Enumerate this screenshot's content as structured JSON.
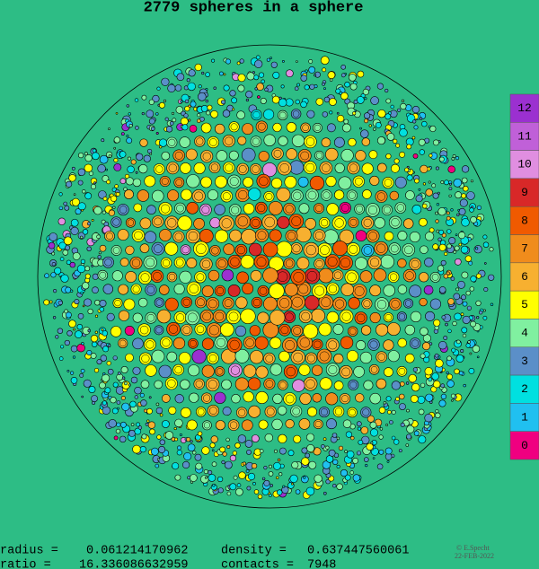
{
  "title": "2779 spheres in a sphere",
  "legend": [
    {
      "label": 12,
      "color": "#9b30d0"
    },
    {
      "label": 11,
      "color": "#c060d8"
    },
    {
      "label": 10,
      "color": "#e08ee0"
    },
    {
      "label": 9,
      "color": "#d82828"
    },
    {
      "label": 8,
      "color": "#f05a00"
    },
    {
      "label": 7,
      "color": "#f08c1c"
    },
    {
      "label": 6,
      "color": "#f7b030"
    },
    {
      "label": 5,
      "color": "#ffff00"
    },
    {
      "label": 4,
      "color": "#80f0a0"
    },
    {
      "label": 3,
      "color": "#5b8fc8"
    },
    {
      "label": 2,
      "color": "#00e0e0"
    },
    {
      "label": 1,
      "color": "#20c0f0"
    },
    {
      "label": 0,
      "color": "#f00080"
    }
  ],
  "stats": {
    "radius_label": "radius =",
    "radius": "0.061214170962",
    "density_label": "density =",
    "density": "0.637447560061",
    "ratio_label": "ratio =",
    "ratio": "16.336086632959",
    "contacts_label": "contacts =",
    "contacts": "7948"
  },
  "credit": {
    "author": "© E.Specht",
    "date": "22-FEB-2022"
  }
}
